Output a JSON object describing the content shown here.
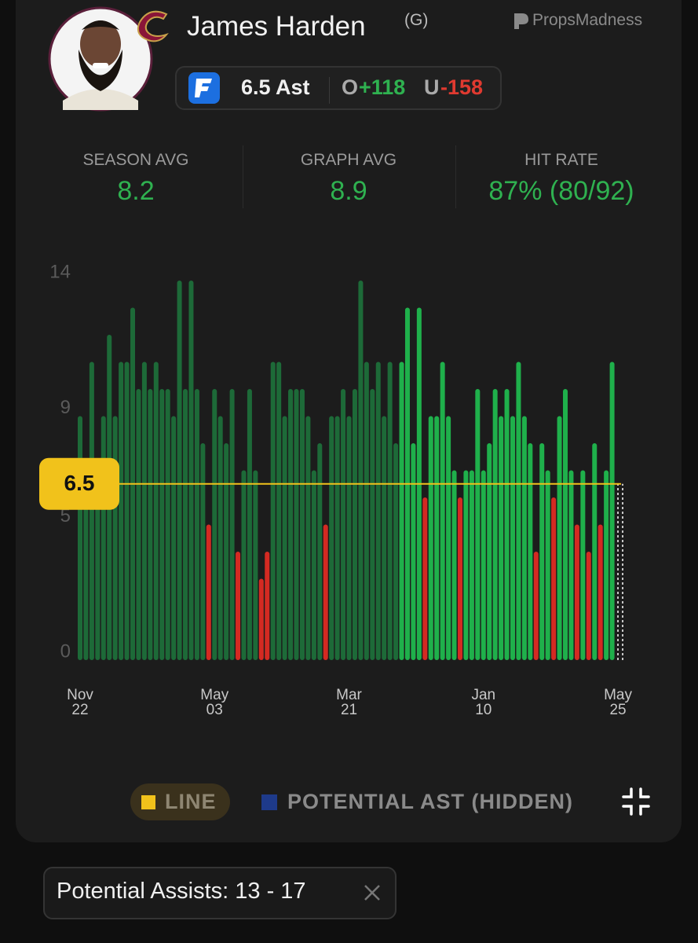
{
  "header": {
    "player": "James Harden",
    "position": "(G)",
    "brand": "PropsMadness",
    "bet": {
      "line": "6.5 Ast",
      "over_label": "O",
      "over_odds": "+118",
      "under_label": "U",
      "under_odds": "-158"
    }
  },
  "stats": [
    {
      "label": "SEASON AVG",
      "value": "8.2"
    },
    {
      "label": "GRAPH AVG",
      "value": "8.9"
    },
    {
      "label": "HIT RATE",
      "value": "87% (80/92)"
    }
  ],
  "chart_data": {
    "type": "bar",
    "categories": [
      "Nov 22",
      null,
      null,
      null,
      null,
      null,
      null,
      null,
      null,
      null,
      null,
      null,
      null,
      null,
      null,
      null,
      null,
      null,
      null,
      null,
      null,
      null,
      null,
      "May 03",
      null,
      null,
      null,
      null,
      null,
      null,
      null,
      null,
      null,
      null,
      null,
      null,
      null,
      null,
      null,
      null,
      null,
      null,
      null,
      null,
      null,
      null,
      "Mar 21",
      null,
      null,
      null,
      null,
      null,
      null,
      null,
      null,
      null,
      null,
      null,
      null,
      null,
      null,
      null,
      null,
      null,
      null,
      null,
      null,
      null,
      null,
      "Jan 10",
      null,
      null,
      null,
      null,
      null,
      null,
      null,
      null,
      null,
      null,
      null,
      null,
      null,
      null,
      null,
      null,
      null,
      null,
      null,
      null,
      null,
      null,
      "May 25"
    ],
    "values": [
      9,
      7,
      11,
      7,
      9,
      12,
      9,
      11,
      11,
      13,
      10,
      11,
      10,
      11,
      10,
      10,
      9,
      14,
      10,
      14,
      10,
      8,
      5,
      10,
      9,
      8,
      10,
      4,
      7,
      10,
      7,
      3,
      4,
      11,
      11,
      9,
      10,
      10,
      10,
      9,
      7,
      8,
      5,
      9,
      9,
      10,
      9,
      10,
      14,
      11,
      10,
      11,
      9,
      11,
      8,
      11,
      13,
      8,
      13,
      6,
      9,
      9,
      11,
      9,
      7,
      6,
      7,
      7,
      10,
      7,
      8,
      10,
      9,
      10,
      9,
      11,
      9,
      8,
      4,
      8,
      7,
      6,
      9,
      10,
      7,
      5,
      7,
      4,
      8,
      5,
      7,
      11,
      null
    ],
    "colors": [
      "#1d6a38",
      "#1d6a38",
      "#1d6a38",
      "#1d6a38",
      "#1d6a38",
      "#1d6a38",
      "#1d6a38",
      "#1d6a38",
      "#1d6a38",
      "#1d6a38",
      "#1d6a38",
      "#1d6a38",
      "#1d6a38",
      "#1d6a38",
      "#1d6a38",
      "#1d6a38",
      "#1d6a38",
      "#1d6a38",
      "#1d6a38",
      "#1d6a38",
      "#1d6a38",
      "#1d6a38",
      "#d42a22",
      "#1d6a38",
      "#1d6a38",
      "#1d6a38",
      "#1d6a38",
      "#d42a22",
      "#1d6a38",
      "#1d6a38",
      "#1d6a38",
      "#d42a22",
      "#d42a22",
      "#1d6a38",
      "#1d6a38",
      "#1d6a38",
      "#1d6a38",
      "#1d6a38",
      "#1d6a38",
      "#1d6a38",
      "#1d6a38",
      "#1d6a38",
      "#d42a22",
      "#1d6a38",
      "#1d6a38",
      "#1d6a38",
      "#1d6a38",
      "#1d6a38",
      "#1d6a38",
      "#1d6a38",
      "#1d6a38",
      "#1d6a38",
      "#1d6a38",
      "#1d6a38",
      "#1d6a38",
      "#1fb04b",
      "#1fb04b",
      "#1fb04b",
      "#1fb04b",
      "#d42a22",
      "#1fb04b",
      "#1fb04b",
      "#1fb04b",
      "#1fb04b",
      "#1fb04b",
      "#d42a22",
      "#1fb04b",
      "#1fb04b",
      "#1fb04b",
      "#1fb04b",
      "#1fb04b",
      "#1fb04b",
      "#1fb04b",
      "#1fb04b",
      "#1fb04b",
      "#1fb04b",
      "#1fb04b",
      "#1fb04b",
      "#d42a22",
      "#1fb04b",
      "#1fb04b",
      "#d42a22",
      "#1fb04b",
      "#1fb04b",
      "#1fb04b",
      "#d42a22",
      "#1fb04b",
      "#d42a22",
      "#1fb04b",
      "#d42a22",
      "#1fb04b",
      "#1fb04b",
      null
    ],
    "ylim": [
      0,
      14
    ],
    "yticks": [
      0,
      5,
      9,
      14
    ],
    "line": {
      "value": 6.5,
      "color": "#f1c21b"
    },
    "legend": [
      {
        "name": "LINE",
        "color": "#f1c21b"
      },
      {
        "name": "POTENTIAL AST (HIDDEN)",
        "color": "#1e3a8a"
      }
    ]
  },
  "filter": "Potential Assists: 13 - 17"
}
